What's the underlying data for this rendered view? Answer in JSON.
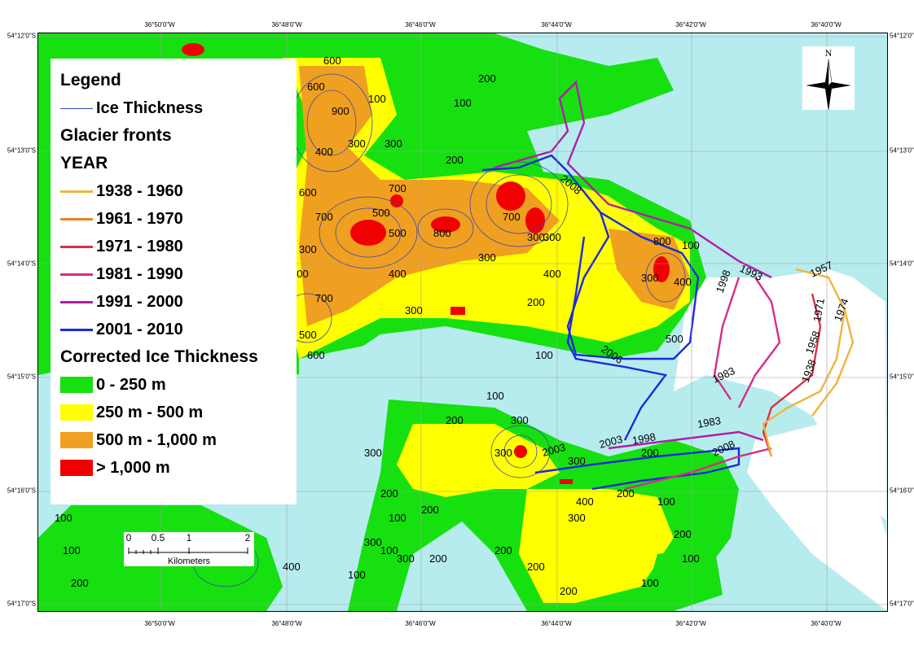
{
  "coords": {
    "top": [
      "36°50'0\"W",
      "36°48'0\"W",
      "36°46'0\"W",
      "36°44'0\"W",
      "36°42'0\"W",
      "36°40'0\"W"
    ],
    "bottom": [
      "36°50'0\"W",
      "36°48'0\"W",
      "36°46'0\"W",
      "36°44'0\"W",
      "36°42'0\"W",
      "36°40'0\"W"
    ],
    "left": [
      "54°12'0\"S",
      "54°13'0\"S",
      "54°14'0\"S",
      "54°15'0\"S",
      "54°16'0\"S",
      "54°17'0\"S"
    ],
    "right": [
      "54°12'0\"",
      "54°13'0\"",
      "54°14'0\"",
      "54°15'0\"",
      "54°16'0\"",
      "54°17'0\""
    ]
  },
  "legend": {
    "title": "Legend",
    "ice_thickness": "Ice Thickness",
    "glacier_fronts": "Glacier fronts",
    "year": "YEAR",
    "years": [
      {
        "label": "1938 - 1960",
        "color": "#f0b43c"
      },
      {
        "label": "1961 - 1970",
        "color": "#e8822a"
      },
      {
        "label": "1971 - 1980",
        "color": "#d8304a"
      },
      {
        "label": "1981 - 1990",
        "color": "#d42c8a"
      },
      {
        "label": "1991 - 2000",
        "color": "#b01ea8"
      },
      {
        "label": "2001 - 2010",
        "color": "#1a2ad8"
      }
    ],
    "corrected_title": "Corrected Ice Thickness",
    "classes": [
      {
        "label": "0 - 250 m",
        "color": "#16e010"
      },
      {
        "label": "250 m - 500 m",
        "color": "#ffff00"
      },
      {
        "label": "500 m - 1,000 m",
        "color": "#f0a020"
      },
      {
        "label": "> 1,000 m",
        "color": "#f00000"
      }
    ]
  },
  "north": {
    "label": "N"
  },
  "scalebar": {
    "ticks": [
      "0",
      "0.5",
      "1",
      "2"
    ],
    "unit": "Kilometers"
  },
  "contour_labels": [
    "600",
    "600",
    "900",
    "300",
    "400",
    "100",
    "300",
    "200",
    "100",
    "200",
    "500",
    "700",
    "600",
    "700",
    "500",
    "300",
    "400",
    "800",
    "300",
    "400",
    "300",
    "200",
    "300",
    "400",
    "300",
    "400",
    "500",
    "700",
    "300",
    "700",
    "500",
    "600",
    "100",
    "800",
    "100",
    "300",
    "300",
    "200",
    "200",
    "100",
    "400",
    "100",
    "200",
    "300",
    "300",
    "200",
    "100",
    "200",
    "100",
    "300",
    "300",
    "100",
    "200",
    "200",
    "300",
    "200",
    "200",
    "100",
    "100",
    "200",
    "100",
    "100",
    "200",
    "300",
    "400"
  ],
  "front_labels": [
    "2008",
    "2006",
    "1993",
    "1998",
    "1983",
    "1957",
    "1974",
    "1958",
    "1938",
    "1983",
    "1998",
    "2003",
    "2003",
    "2008",
    "1971"
  ],
  "colors": {
    "water": "#b7ecef",
    "rock": "#ffffff"
  }
}
